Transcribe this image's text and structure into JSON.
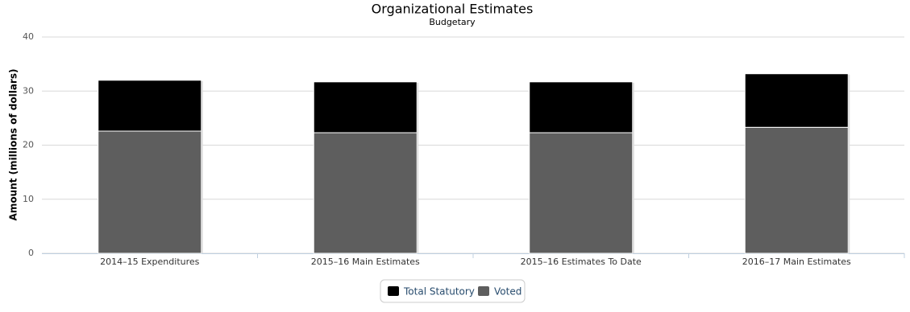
{
  "chart_data": {
    "type": "stacked_bar",
    "title": "Organizational Estimates",
    "subtitle": "Budgetary",
    "y_label": "Amount (millions of dollars)",
    "categories": [
      "2014–15 Expenditures",
      "2015–16 Main Estimates",
      "2015–16 Estimates To Date",
      "2016–17 Main Estimates"
    ],
    "series": [
      {
        "name": "Total Statutory",
        "color": "#000000",
        "values": [
          9.4,
          9.4,
          9.4,
          9.9
        ]
      },
      {
        "name": "Voted",
        "color": "#5e5e5e",
        "values": [
          22.6,
          22.3,
          22.3,
          23.3
        ]
      }
    ],
    "ylim": [
      0,
      40
    ],
    "yticks": [
      0,
      10,
      20,
      30,
      40
    ],
    "grid": true
  }
}
